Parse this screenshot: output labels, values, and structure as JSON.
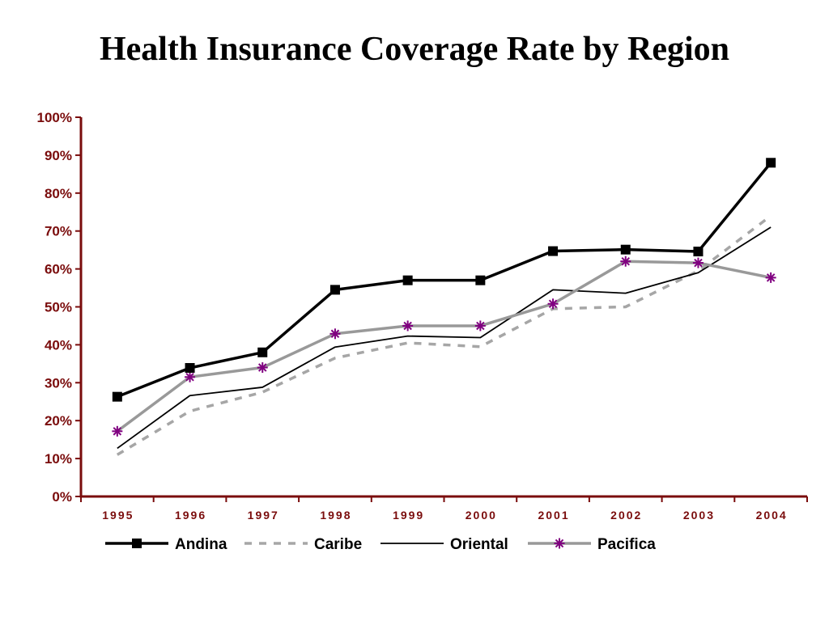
{
  "chart_data": {
    "type": "line",
    "title": "Health Insurance Coverage Rate by Region",
    "xlabel": "",
    "ylabel": "",
    "ylim": [
      0,
      100
    ],
    "yticks": [
      "0%",
      "10%",
      "20%",
      "30%",
      "40%",
      "50%",
      "60%",
      "70%",
      "80%",
      "90%",
      "100%"
    ],
    "categories": [
      "1995",
      "1996",
      "1997",
      "1998",
      "1999",
      "2000",
      "2001",
      "2002",
      "2003",
      "2004"
    ],
    "grid": false,
    "legend_position": "bottom",
    "series": [
      {
        "name": "Andina",
        "values": [
          26.3,
          33.9,
          38.0,
          54.5,
          57.0,
          57.0,
          64.7,
          65.1,
          64.6,
          88.0
        ],
        "color": "#000000",
        "style": "thick-solid",
        "marker": "square"
      },
      {
        "name": "Caribe",
        "values": [
          11.0,
          22.5,
          27.5,
          36.5,
          40.5,
          39.5,
          49.5,
          50.0,
          59.5,
          74.0
        ],
        "color": "#a6a6a6",
        "style": "dashed",
        "marker": "none"
      },
      {
        "name": "Oriental",
        "values": [
          12.7,
          26.6,
          28.8,
          39.4,
          42.3,
          41.9,
          54.5,
          53.6,
          59.0,
          71.0
        ],
        "color": "#000000",
        "style": "thin-solid",
        "marker": "none"
      },
      {
        "name": "Pacifica",
        "values": [
          17.2,
          31.5,
          34.0,
          42.9,
          45.0,
          45.0,
          50.8,
          62.0,
          61.6,
          57.7
        ],
        "color": "#999999",
        "style": "thick-solid",
        "marker": "asterisk",
        "marker_color": "#800080"
      }
    ]
  },
  "colors": {
    "axis": "#7a0c0c",
    "tick_text": "#7a0c0c"
  }
}
